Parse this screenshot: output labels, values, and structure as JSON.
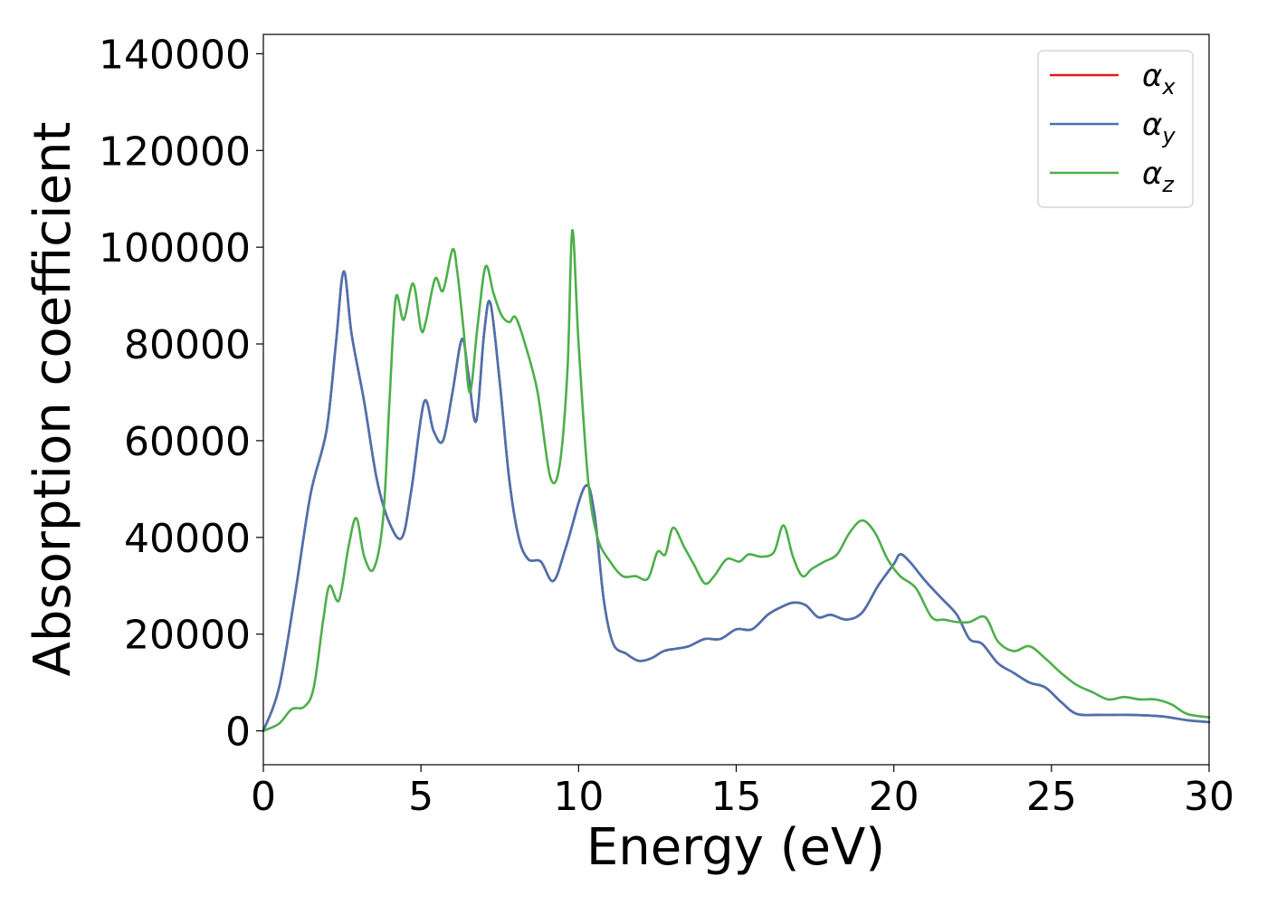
{
  "chart_data": {
    "type": "line",
    "title": "",
    "xlabel": "Energy (eV)",
    "ylabel": "Absorption coefficient",
    "xlim": [
      0,
      30
    ],
    "ylim": [
      -7000,
      144000
    ],
    "xticks": [
      0,
      5,
      10,
      15,
      20,
      25,
      30
    ],
    "yticks": [
      0,
      20000,
      40000,
      60000,
      80000,
      100000,
      120000,
      140000
    ],
    "grid": false,
    "legend_position": "top-right",
    "series": [
      {
        "name": "αx",
        "legend_base": "α",
        "legend_sub": "x",
        "color": "#e41a1c",
        "x": [
          0,
          0.5,
          1.0,
          1.5,
          2.0,
          2.3,
          2.55,
          2.8,
          3.2,
          3.6,
          4.0,
          4.4,
          4.7,
          5.1,
          5.4,
          5.7,
          6.0,
          6.3,
          6.5,
          6.75,
          7.0,
          7.2,
          7.5,
          7.8,
          8.1,
          8.4,
          8.8,
          9.2,
          9.6,
          10.2,
          10.5,
          10.8,
          11.1,
          11.5,
          11.9,
          12.3,
          12.7,
          13.1,
          13.5,
          14.0,
          14.5,
          15.0,
          15.5,
          16.0,
          16.4,
          16.8,
          17.2,
          17.6,
          18.0,
          18.5,
          19.0,
          19.5,
          20.0,
          20.2,
          20.5,
          21.0,
          21.5,
          22.0,
          22.4,
          22.8,
          23.3,
          23.8,
          24.3,
          24.8,
          25.3,
          25.8,
          26.5,
          27.5,
          28.5,
          29.3,
          30.0
        ],
        "y": [
          0,
          9000,
          28000,
          49000,
          62000,
          80000,
          95000,
          82000,
          68000,
          52000,
          43000,
          40000,
          50000,
          68000,
          62000,
          60000,
          70000,
          81000,
          74000,
          64000,
          82000,
          88500,
          72000,
          52000,
          40000,
          35500,
          35000,
          31000,
          38000,
          50500,
          45000,
          27000,
          18000,
          16000,
          14500,
          15000,
          16500,
          17000,
          17500,
          19000,
          19000,
          21000,
          21000,
          24000,
          25500,
          26500,
          26000,
          23500,
          24000,
          23000,
          24500,
          30000,
          34500,
          36500,
          35000,
          31000,
          27500,
          24000,
          19000,
          18000,
          14000,
          12000,
          10000,
          9000,
          6000,
          3500,
          3300,
          3300,
          3000,
          2200,
          1800
        ]
      },
      {
        "name": "αy",
        "legend_base": "α",
        "legend_sub": "y",
        "color": "#4a72b0",
        "x": [
          0,
          0.5,
          1.0,
          1.5,
          2.0,
          2.3,
          2.55,
          2.8,
          3.2,
          3.6,
          4.0,
          4.4,
          4.7,
          5.1,
          5.4,
          5.7,
          6.0,
          6.3,
          6.5,
          6.75,
          7.0,
          7.2,
          7.5,
          7.8,
          8.1,
          8.4,
          8.8,
          9.2,
          9.6,
          10.2,
          10.5,
          10.8,
          11.1,
          11.5,
          11.9,
          12.3,
          12.7,
          13.1,
          13.5,
          14.0,
          14.5,
          15.0,
          15.5,
          16.0,
          16.4,
          16.8,
          17.2,
          17.6,
          18.0,
          18.5,
          19.0,
          19.5,
          20.0,
          20.2,
          20.5,
          21.0,
          21.5,
          22.0,
          22.4,
          22.8,
          23.3,
          23.8,
          24.3,
          24.8,
          25.3,
          25.8,
          26.5,
          27.5,
          28.5,
          29.3,
          30.0
        ],
        "y": [
          0,
          9000,
          28000,
          49000,
          62000,
          80000,
          95000,
          82000,
          68000,
          52000,
          43000,
          40000,
          50000,
          68000,
          62000,
          60000,
          70000,
          81000,
          74000,
          64000,
          82000,
          88500,
          72000,
          52000,
          40000,
          35500,
          35000,
          31000,
          38000,
          50500,
          45000,
          27000,
          18000,
          16000,
          14500,
          15000,
          16500,
          17000,
          17500,
          19000,
          19000,
          21000,
          21000,
          24000,
          25500,
          26500,
          26000,
          23500,
          24000,
          23000,
          24500,
          30000,
          34500,
          36500,
          35000,
          31000,
          27500,
          24000,
          19000,
          18000,
          14000,
          12000,
          10000,
          9000,
          6000,
          3500,
          3300,
          3300,
          3000,
          2200,
          1800
        ]
      },
      {
        "name": "αz",
        "legend_base": "α",
        "legend_sub": "z",
        "color": "#4daf4a",
        "x": [
          0,
          0.5,
          0.9,
          1.3,
          1.6,
          1.9,
          2.1,
          2.4,
          2.7,
          2.95,
          3.2,
          3.5,
          3.8,
          4.0,
          4.2,
          4.45,
          4.75,
          5.0,
          5.15,
          5.45,
          5.7,
          6.0,
          6.15,
          6.35,
          6.55,
          6.8,
          7.05,
          7.3,
          7.55,
          7.8,
          8.0,
          8.3,
          8.7,
          9.1,
          9.4,
          9.65,
          9.8,
          10.0,
          10.3,
          10.6,
          11.0,
          11.4,
          11.8,
          12.2,
          12.5,
          12.75,
          13.0,
          13.35,
          13.65,
          14.0,
          14.3,
          14.7,
          15.1,
          15.4,
          15.8,
          16.2,
          16.5,
          16.8,
          17.1,
          17.4,
          17.8,
          18.2,
          18.6,
          19.0,
          19.4,
          19.8,
          20.2,
          20.7,
          21.2,
          21.6,
          22.0,
          22.4,
          22.9,
          23.3,
          23.8,
          24.3,
          24.8,
          25.3,
          25.8,
          26.3,
          26.8,
          27.3,
          27.8,
          28.3,
          28.8,
          29.3,
          30.0
        ],
        "y": [
          0,
          1500,
          4500,
          5000,
          9000,
          23000,
          30000,
          27000,
          38000,
          44000,
          36000,
          33500,
          44000,
          68000,
          89500,
          85000,
          92500,
          83000,
          84500,
          93500,
          91000,
          99500,
          95000,
          83000,
          70000,
          84000,
          96000,
          90500,
          86000,
          84500,
          85500,
          80000,
          70000,
          52500,
          55000,
          75000,
          103500,
          80000,
          52000,
          40000,
          35000,
          32000,
          32000,
          31500,
          37000,
          36500,
          42000,
          38000,
          34500,
          30500,
          32000,
          35500,
          35000,
          36500,
          36000,
          37000,
          42500,
          36000,
          32000,
          33500,
          35000,
          36500,
          41000,
          43500,
          41000,
          35500,
          32000,
          29500,
          23500,
          23000,
          22500,
          22500,
          23500,
          18500,
          16500,
          17500,
          15000,
          12000,
          9500,
          8000,
          6500,
          7000,
          6500,
          6500,
          5500,
          3500,
          2800
        ]
      }
    ]
  }
}
